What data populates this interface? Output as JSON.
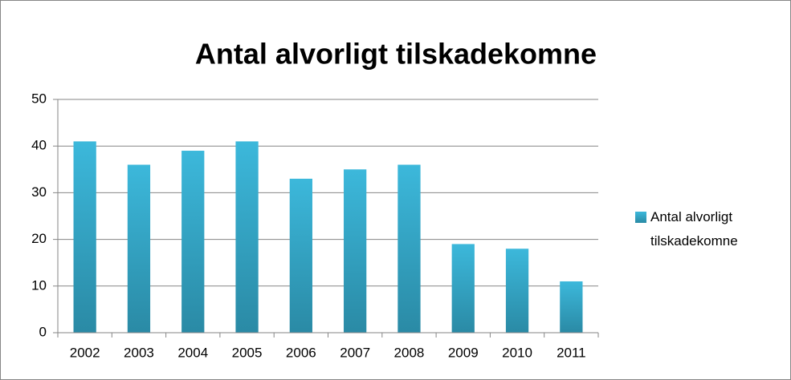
{
  "chart_data": {
    "type": "bar",
    "title": "Antal alvorligt tilskadekomne",
    "categories": [
      "2002",
      "2003",
      "2004",
      "2005",
      "2006",
      "2007",
      "2008",
      "2009",
      "2010",
      "2011"
    ],
    "series": [
      {
        "name": "Antal alvorligt tilskadekomne",
        "color": "#3cb8db",
        "values": [
          41,
          36,
          39,
          41,
          33,
          35,
          36,
          19,
          18,
          11
        ]
      }
    ],
    "ylim": [
      0,
      50
    ],
    "yticks": [
      0,
      10,
      20,
      30,
      40,
      50
    ],
    "grid": true,
    "legend": "right"
  }
}
